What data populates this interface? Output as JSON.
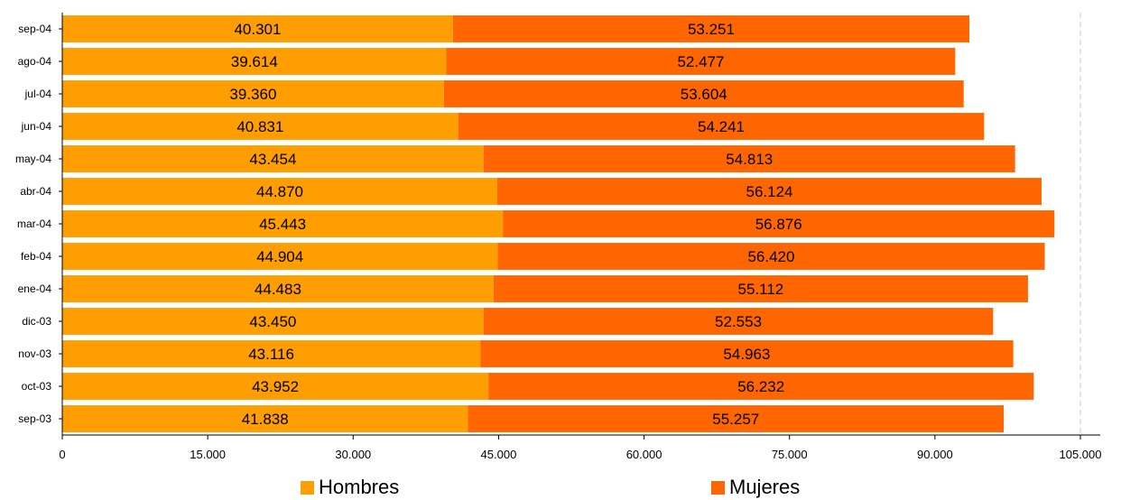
{
  "chart_data": {
    "type": "bar",
    "orientation": "horizontal",
    "stacked": true,
    "categories": [
      "sep-04",
      "ago-04",
      "jul-04",
      "jun-04",
      "may-04",
      "abr-04",
      "mar-04",
      "feb-04",
      "ene-04",
      "dic-03",
      "nov-03",
      "oct-03",
      "sep-03"
    ],
    "series": [
      {
        "name": "Hombres",
        "color": "#FF9E00",
        "values": [
          40301,
          39614,
          39360,
          40831,
          43454,
          44870,
          45443,
          44904,
          44483,
          43450,
          43116,
          43952,
          41838
        ],
        "labels": [
          "40.301",
          "39.614",
          "39.360",
          "40.831",
          "43.454",
          "44.870",
          "45.443",
          "44.904",
          "44.483",
          "43.450",
          "43.116",
          "43.952",
          "41.838"
        ]
      },
      {
        "name": "Mujeres",
        "color": "#FF6600",
        "values": [
          53251,
          52477,
          53604,
          54241,
          54813,
          56124,
          56876,
          56420,
          55112,
          52553,
          54963,
          56232,
          55257
        ],
        "labels": [
          "53.251",
          "52.477",
          "53.604",
          "54.241",
          "54.813",
          "56.124",
          "56.876",
          "56.420",
          "55.112",
          "52.553",
          "54.963",
          "56.232",
          "55.257"
        ]
      }
    ],
    "xlim": [
      0,
      105000
    ],
    "xticks": [
      0,
      15000,
      30000,
      45000,
      60000,
      75000,
      90000,
      105000
    ],
    "xtick_labels": [
      "0",
      "15.000",
      "30.000",
      "45.000",
      "60.000",
      "75.000",
      "90.000",
      "105.000"
    ],
    "grid": "vertical dashed at last tick",
    "legend_position": "bottom",
    "xlabel": "",
    "ylabel": "",
    "title": ""
  }
}
